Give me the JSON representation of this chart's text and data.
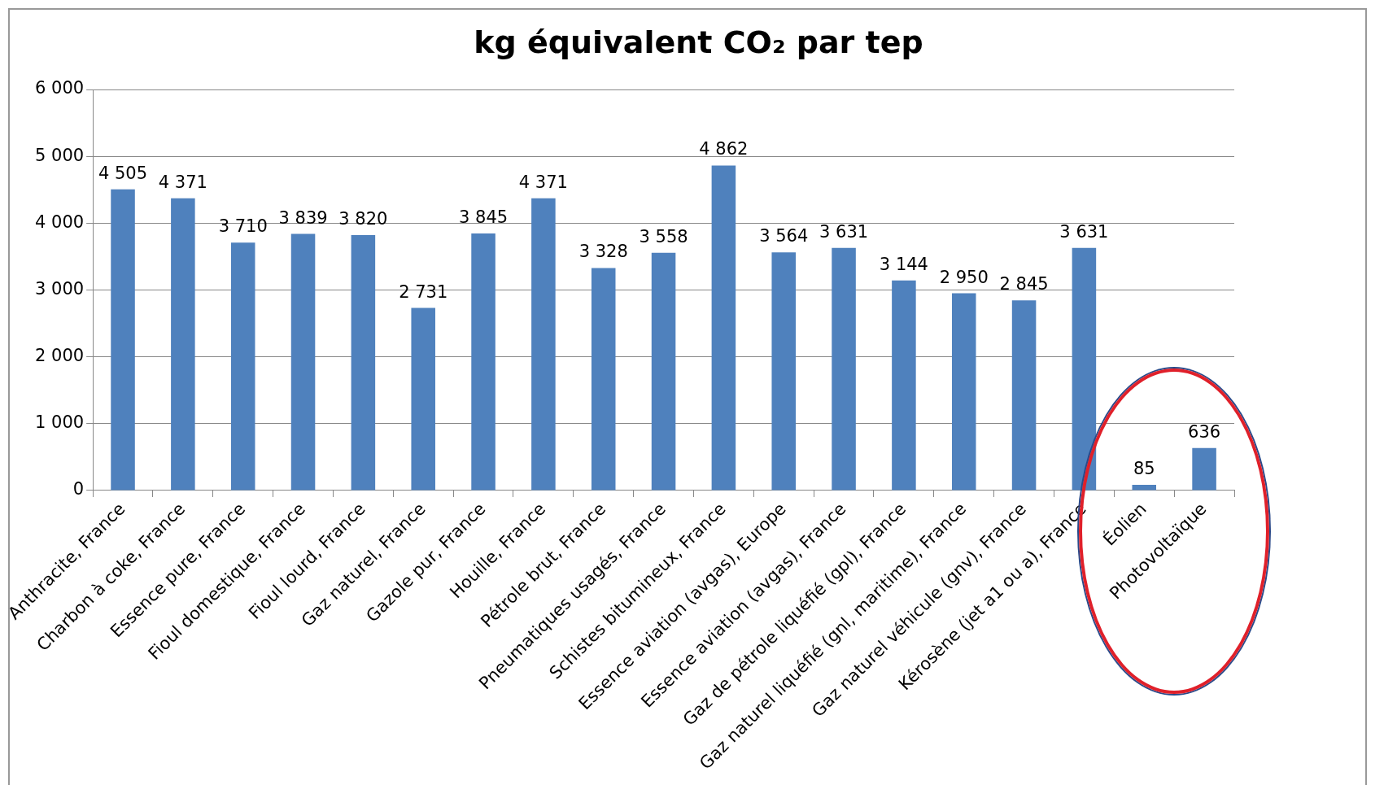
{
  "chart_data": {
    "type": "bar",
    "title": "kg équivalent CO₂ par tep",
    "categories": [
      "Anthracite, France",
      "Charbon à coke, France",
      "Essence pure, France",
      "Fioul domestique, France",
      "Fioul lourd, France",
      "Gaz naturel, France",
      "Gazole pur, France",
      "Houille, France",
      "Pétrole brut, France",
      "Pneumatiques usagés, France",
      "Schistes bitumineux, France",
      "Essence aviation (avgas), Europe",
      "Essence aviation (avgas), France",
      "Gaz de pétrole liquéfié (gpl), France",
      "Gaz naturel liquéfié (gnl, maritime), France",
      "Gaz naturel véhicule (gnv), France",
      "Kérosène (jet a1 ou a), France",
      "Éolien",
      "Photovoltaïque"
    ],
    "values": [
      4505,
      4371,
      3710,
      3839,
      3820,
      2731,
      3845,
      4371,
      3328,
      3558,
      4862,
      3564,
      3631,
      3144,
      2950,
      2845,
      3631,
      85,
      636
    ],
    "value_labels": [
      "4 505",
      "4 371",
      "3 710",
      "3 839",
      "3 820",
      "2 731",
      "3 845",
      "4 371",
      "3 328",
      "3 558",
      "4 862",
      "3 564",
      "3 631",
      "3 144",
      "2 950",
      "2 845",
      "3 631",
      "85",
      "636"
    ],
    "color": "#4f81bd",
    "ylim": [
      0,
      6000
    ],
    "yticks": [
      {
        "value": 0,
        "label": "0"
      },
      {
        "value": 1000,
        "label": "1 000"
      },
      {
        "value": 2000,
        "label": "2 000"
      },
      {
        "value": 3000,
        "label": "3 000"
      },
      {
        "value": 4000,
        "label": "4 000"
      },
      {
        "value": 5000,
        "label": "5 000"
      },
      {
        "value": 6000,
        "label": "6 000"
      }
    ],
    "grid": "y",
    "legend": false
  }
}
